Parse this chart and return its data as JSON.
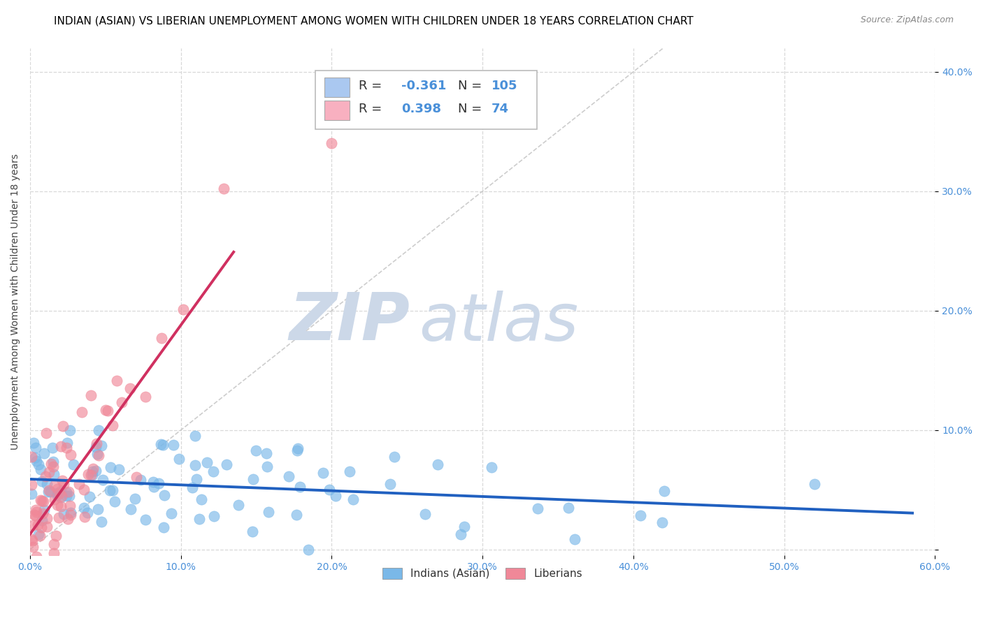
{
  "title": "INDIAN (ASIAN) VS LIBERIAN UNEMPLOYMENT AMONG WOMEN WITH CHILDREN UNDER 18 YEARS CORRELATION CHART",
  "source": "Source: ZipAtlas.com",
  "ylabel": "Unemployment Among Women with Children Under 18 years",
  "xlim": [
    0.0,
    0.6
  ],
  "ylim": [
    -0.005,
    0.42
  ],
  "xticks": [
    0.0,
    0.1,
    0.2,
    0.3,
    0.4,
    0.5,
    0.6
  ],
  "xticklabels": [
    "0.0%",
    "10.0%",
    "20.0%",
    "30.0%",
    "40.0%",
    "50.0%",
    "60.0%"
  ],
  "yticks": [
    0.0,
    0.1,
    0.2,
    0.3,
    0.4
  ],
  "yticklabels": [
    "",
    "10.0%",
    "20.0%",
    "30.0%",
    "40.0%"
  ],
  "legend_items": [
    {
      "color": "#aac8f0",
      "R": "-0.361",
      "N": "105"
    },
    {
      "color": "#f8b0c0",
      "R": "0.398",
      "N": "74"
    }
  ],
  "legend_labels": [
    "Indians (Asian)",
    "Liberians"
  ],
  "indian_color": "#7ab8e8",
  "liberian_color": "#f08898",
  "indian_line_color": "#2060c0",
  "liberian_line_color": "#d03060",
  "ref_line_color": "#c8c8c8",
  "watermark_zip": "ZIP",
  "watermark_atlas": "atlas",
  "watermark_color": "#ccd8e8",
  "background_color": "#ffffff",
  "grid_color": "#d8d8d8",
  "R_indian": -0.361,
  "N_indian": 105,
  "R_liberian": 0.398,
  "N_liberian": 74,
  "title_fontsize": 11,
  "axis_label_fontsize": 10,
  "tick_fontsize": 10,
  "tick_color": "#4a90d9",
  "legend_fontsize": 13,
  "source_color": "#888888"
}
